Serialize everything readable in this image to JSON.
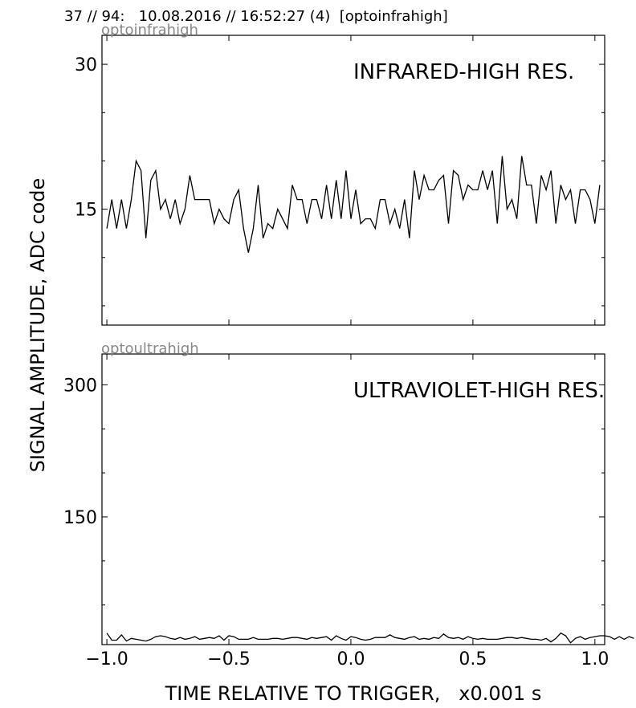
{
  "header": "37 // 94:   10.08.2016 // 16:52:27 (4)  [optoinfrahigh]",
  "ylabel": "SIGNAL AMPLITUDE,  ADC code",
  "xlabel": "TIME RELATIVE TO TRIGGER,   x0.001 s",
  "colors": {
    "line": "#000000",
    "tag": "#888888",
    "frame": "#000000"
  },
  "chart_data": [
    {
      "type": "line",
      "tag": "optoinfrahigh",
      "title": "INFRARED-HIGH RES.",
      "xlim": [
        -1.02,
        1.04
      ],
      "ylim": [
        3.0,
        33.0
      ],
      "yticks": [
        {
          "value": 15,
          "label": "15"
        },
        {
          "value": 30,
          "label": "30"
        }
      ],
      "xticks": [
        -1.0,
        -0.5,
        0.0,
        0.5,
        1.0
      ],
      "series": [
        {
          "x_start": -1.0,
          "x_step": 0.02,
          "values": [
            13,
            16,
            13,
            16,
            13,
            16,
            20,
            19,
            12,
            18,
            19,
            15,
            16,
            14,
            16,
            13.5,
            15,
            18.5,
            16,
            16,
            16,
            16,
            13.5,
            15,
            14,
            13.5,
            16,
            17,
            13,
            10.5,
            13,
            17.5,
            12,
            13.5,
            13,
            15,
            14,
            13,
            17.5,
            16,
            16,
            13.5,
            16,
            16,
            14,
            17.5,
            14,
            18,
            14,
            19,
            14,
            17,
            13.5,
            14,
            14,
            13,
            16,
            16,
            13.5,
            15,
            13,
            16,
            12,
            19,
            16,
            18.5,
            17,
            17,
            18,
            18.5,
            13.5,
            19,
            18.5,
            16,
            17.5,
            17,
            17,
            19,
            17,
            19,
            13.5,
            20.5,
            15,
            16,
            14,
            20.5,
            17.5,
            17.5,
            13.5,
            18.5,
            17,
            19,
            13.5,
            17.5,
            16,
            17,
            13.5,
            17,
            17,
            16,
            13.5,
            17.5
          ]
        }
      ]
    },
    {
      "type": "line",
      "tag": "optoultrahigh",
      "title": "ULTRAVIOLET-HIGH RES.",
      "xlim": [
        -1.02,
        1.04
      ],
      "ylim": [
        5.0,
        335.0
      ],
      "yticks": [
        {
          "value": 150,
          "label": "150"
        },
        {
          "value": 300,
          "label": "300"
        }
      ],
      "xticks": [
        {
          "value": -1.0,
          "label": "−1.0"
        },
        {
          "value": -0.5,
          "label": "−0.5"
        },
        {
          "value": 0.0,
          "label": "0.0"
        },
        {
          "value": 0.5,
          "label": "0.5"
        },
        {
          "value": 1.0,
          "label": "1.0"
        }
      ],
      "series": [
        {
          "x_start": -1.0,
          "x_step": 0.02,
          "values": [
            18,
            10,
            10,
            16,
            9,
            12,
            11,
            10,
            9,
            11,
            14,
            15,
            14,
            12,
            11,
            13,
            11,
            12,
            14,
            11,
            12,
            13,
            12,
            15,
            10,
            15,
            14,
            11,
            11,
            11,
            13,
            11,
            11,
            11,
            12,
            12,
            11,
            12,
            13,
            13,
            12,
            11,
            13,
            12,
            13,
            14,
            10,
            15,
            12,
            10,
            14,
            13,
            11,
            10,
            11,
            13,
            13,
            13,
            16,
            13,
            12,
            11,
            13,
            14,
            11,
            12,
            11,
            13,
            12,
            17,
            13,
            12,
            13,
            11,
            14,
            12,
            11,
            12,
            11,
            11,
            11,
            12,
            13,
            13,
            12,
            13,
            12,
            11,
            11,
            10,
            12,
            8,
            12,
            18,
            15,
            7,
            12,
            14,
            11,
            13,
            14,
            15,
            15,
            14,
            11,
            14,
            11,
            14,
            12
          ]
        }
      ]
    }
  ]
}
